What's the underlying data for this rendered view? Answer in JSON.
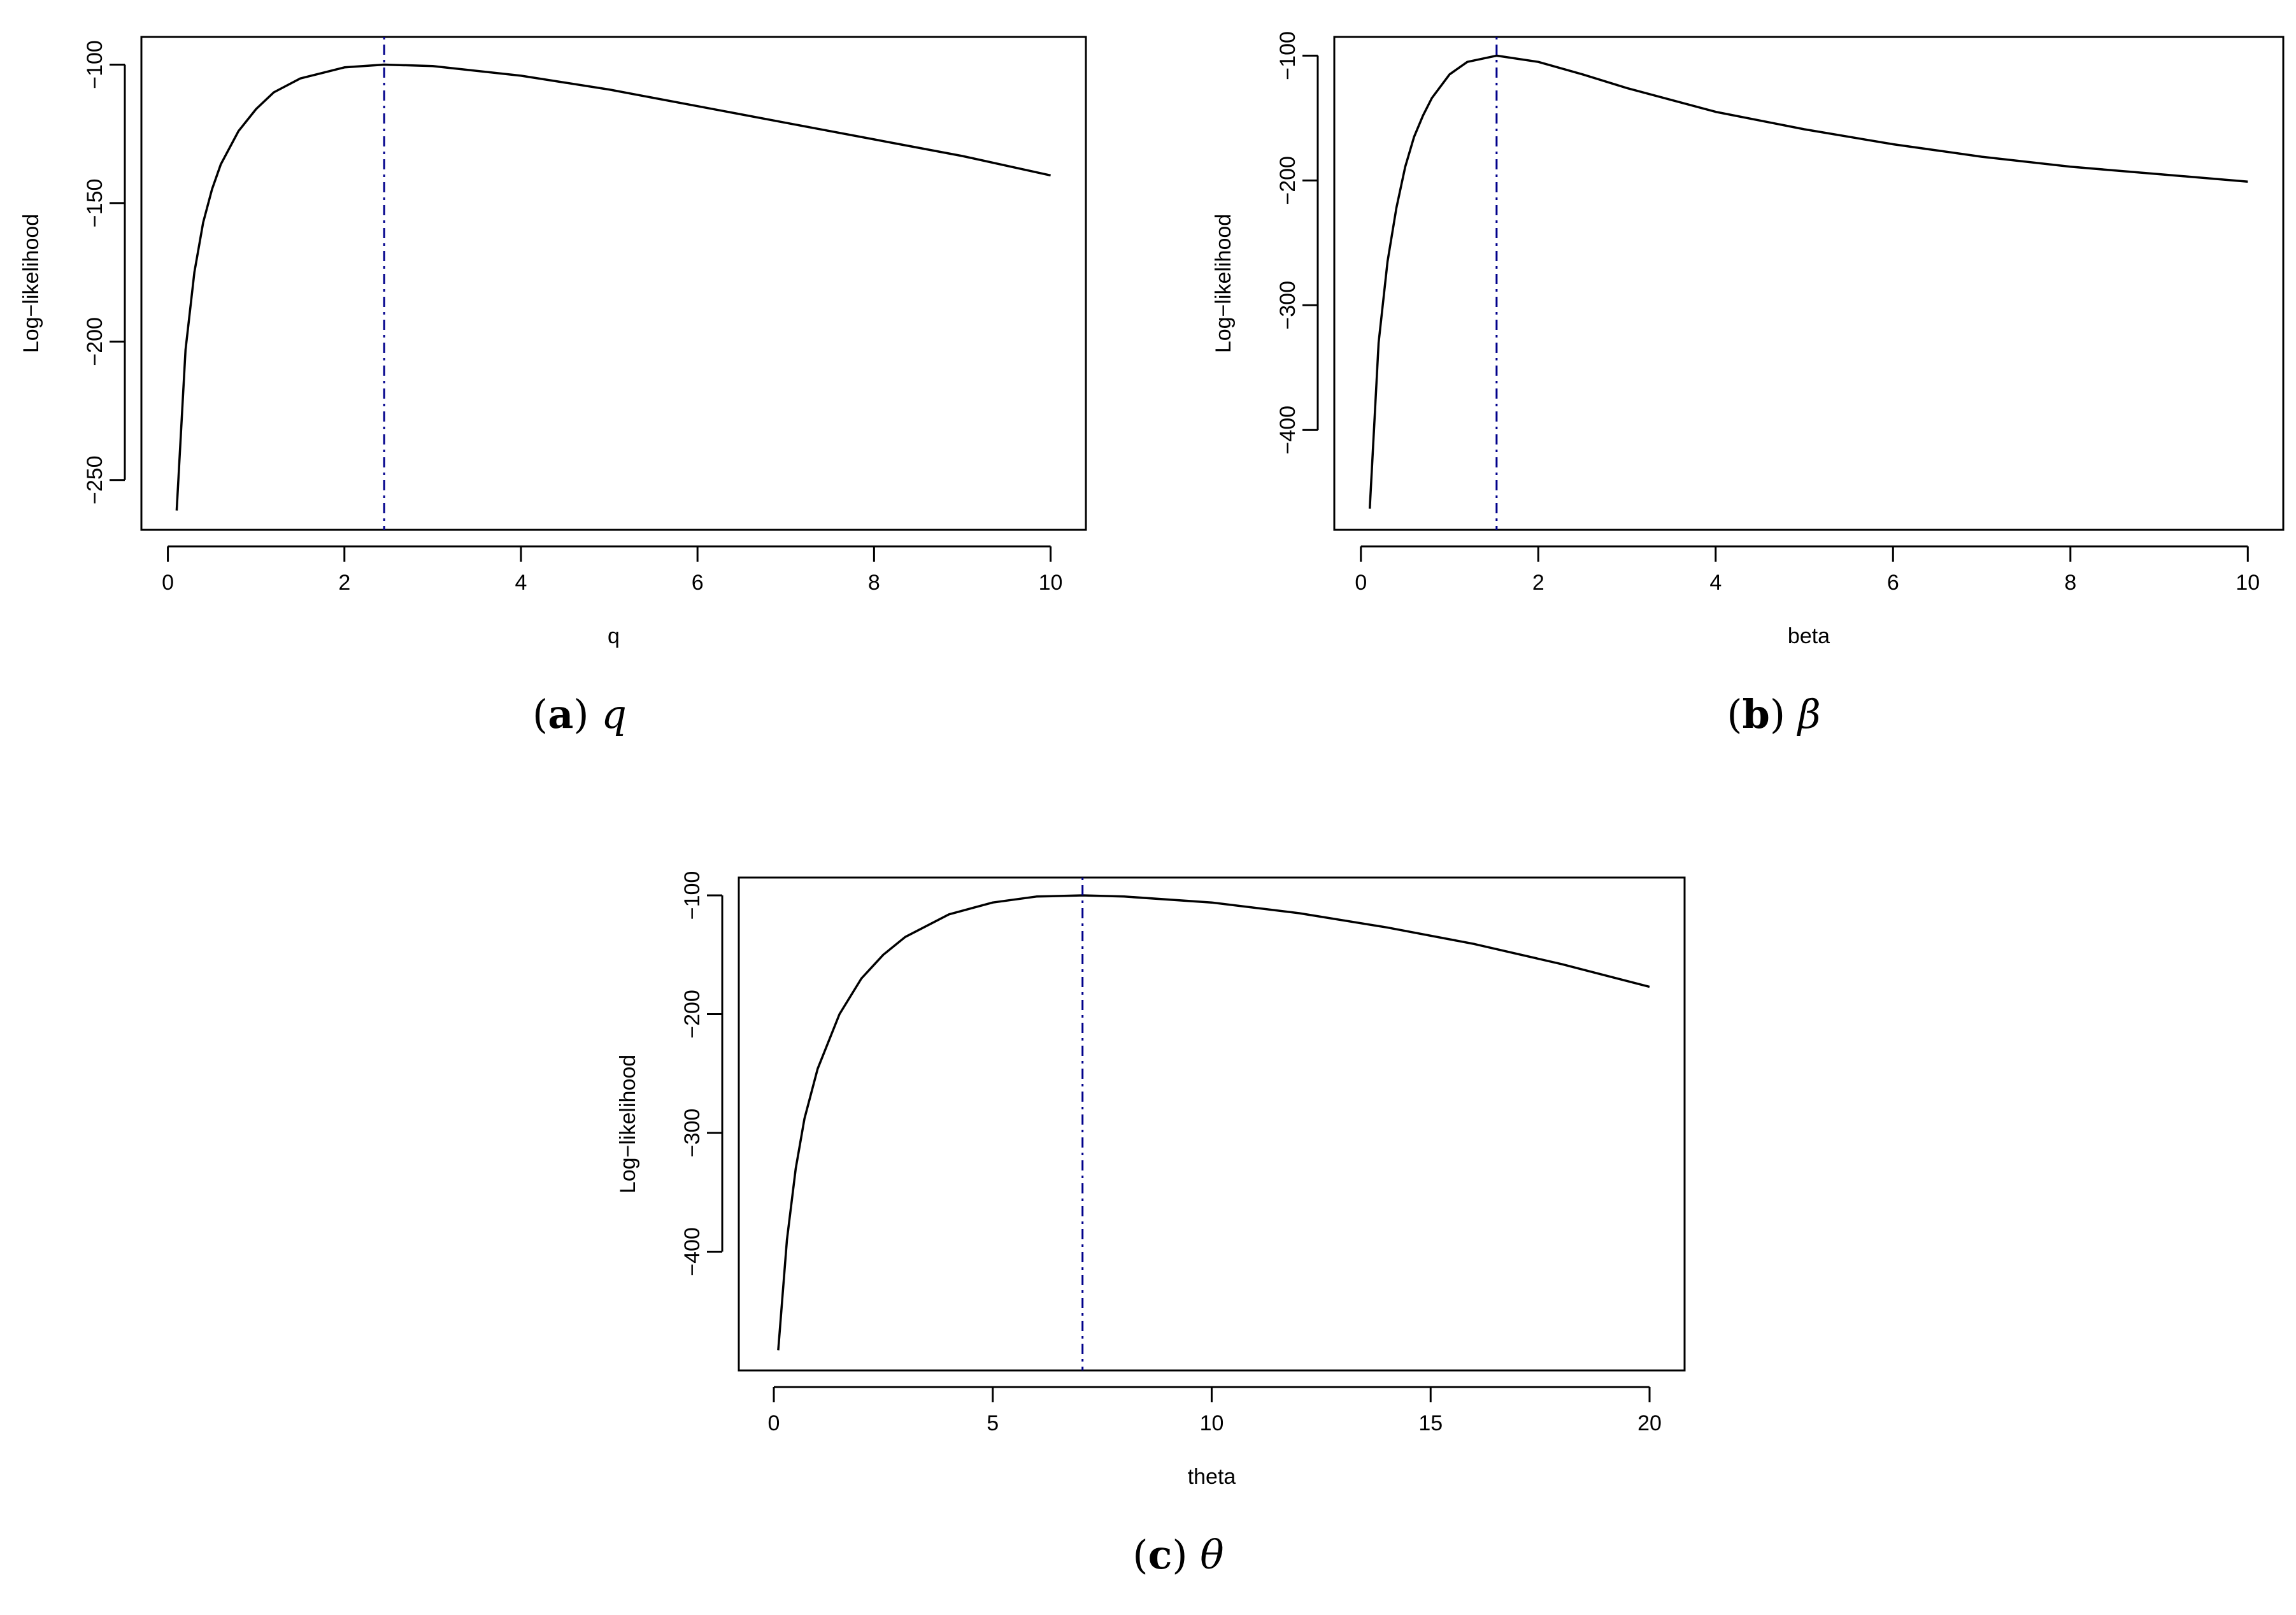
{
  "chart_data": [
    {
      "type": "line",
      "xlabel": "q",
      "ylabel": "Log−likelihood",
      "caption_letter": "a",
      "caption_symbol": "q",
      "xlim": [
        -0.3,
        10.4
      ],
      "ylim": [
        -268,
        -90
      ],
      "xticks": [
        0,
        2,
        4,
        6,
        8,
        10
      ],
      "xtick_labels": [
        "0",
        "2",
        "4",
        "6",
        "8",
        "10"
      ],
      "yticks": [
        -100,
        -150,
        -200,
        -250
      ],
      "ytick_labels": [
        "−100",
        "−150",
        "−200",
        "−250"
      ],
      "line_color": "#000000",
      "vline": {
        "x": 2.45,
        "color": "#00008B",
        "style": "dot-dash"
      },
      "series": [
        {
          "x": [
            0.1,
            0.2,
            0.3,
            0.4,
            0.5,
            0.6,
            0.8,
            1.0,
            1.2,
            1.5,
            2.0,
            2.45,
            3.0,
            4.0,
            5.0,
            6.0,
            7.0,
            8.0,
            9.0,
            10.0
          ],
          "values": [
            -261,
            -203,
            -175,
            -157,
            -145,
            -136,
            -124,
            -116,
            -110,
            -105,
            -101,
            -100,
            -100.5,
            -104,
            -109,
            -115,
            -121,
            -127,
            -133,
            -140
          ]
        }
      ]
    },
    {
      "type": "line",
      "xlabel": "beta",
      "ylabel": "Log−likelihood",
      "caption_letter": "b",
      "caption_symbol": "β",
      "xlim": [
        -0.3,
        10.4
      ],
      "ylim": [
        -480,
        -85
      ],
      "xticks": [
        0,
        2,
        4,
        6,
        8,
        10
      ],
      "xtick_labels": [
        "0",
        "2",
        "4",
        "6",
        "8",
        "10"
      ],
      "yticks": [
        -100,
        -200,
        -300,
        -400
      ],
      "ytick_labels": [
        "−100",
        "−200",
        "−300",
        "−400"
      ],
      "line_color": "#000000",
      "vline": {
        "x": 1.53,
        "color": "#00008B",
        "style": "dot-dash"
      },
      "series": [
        {
          "x": [
            0.1,
            0.2,
            0.3,
            0.4,
            0.5,
            0.6,
            0.7,
            0.8,
            1.0,
            1.2,
            1.53,
            2.0,
            2.5,
            3.0,
            4.0,
            5.0,
            6.0,
            7.0,
            8.0,
            9.0,
            10.0
          ],
          "values": [
            -463,
            -330,
            -265,
            -222,
            -189,
            -165,
            -148,
            -134,
            -115,
            -105,
            -100,
            -105,
            -115,
            -126,
            -145,
            -159,
            -171,
            -181,
            -189,
            -195,
            -201
          ]
        }
      ]
    },
    {
      "type": "line",
      "xlabel": "theta",
      "ylabel": "Log−likelihood",
      "caption_letter": "c",
      "caption_symbol": "θ",
      "xlim": [
        -0.8,
        20.8
      ],
      "ylim": [
        -500,
        -85
      ],
      "xticks": [
        0,
        5,
        10,
        15,
        20
      ],
      "xtick_labels": [
        "0",
        "5",
        "10",
        "15",
        "20"
      ],
      "yticks": [
        -100,
        -200,
        -300,
        -400
      ],
      "ytick_labels": [
        "−100",
        "−200",
        "−300",
        "−400"
      ],
      "line_color": "#000000",
      "vline": {
        "x": 7.05,
        "color": "#00008B",
        "style": "dot-dash"
      },
      "series": [
        {
          "x": [
            0.1,
            0.3,
            0.5,
            0.7,
            1.0,
            1.5,
            2.0,
            2.5,
            3.0,
            4.0,
            5.0,
            6.0,
            7.05,
            8.0,
            10.0,
            12.0,
            14.0,
            16.0,
            18.0,
            20.0
          ],
          "values": [
            -483,
            -390,
            -330,
            -288,
            -246,
            -200,
            -170,
            -150,
            -135,
            -116,
            -106,
            -101,
            -100,
            -101,
            -106,
            -115,
            -127,
            -141,
            -158,
            -177
          ]
        }
      ]
    }
  ]
}
